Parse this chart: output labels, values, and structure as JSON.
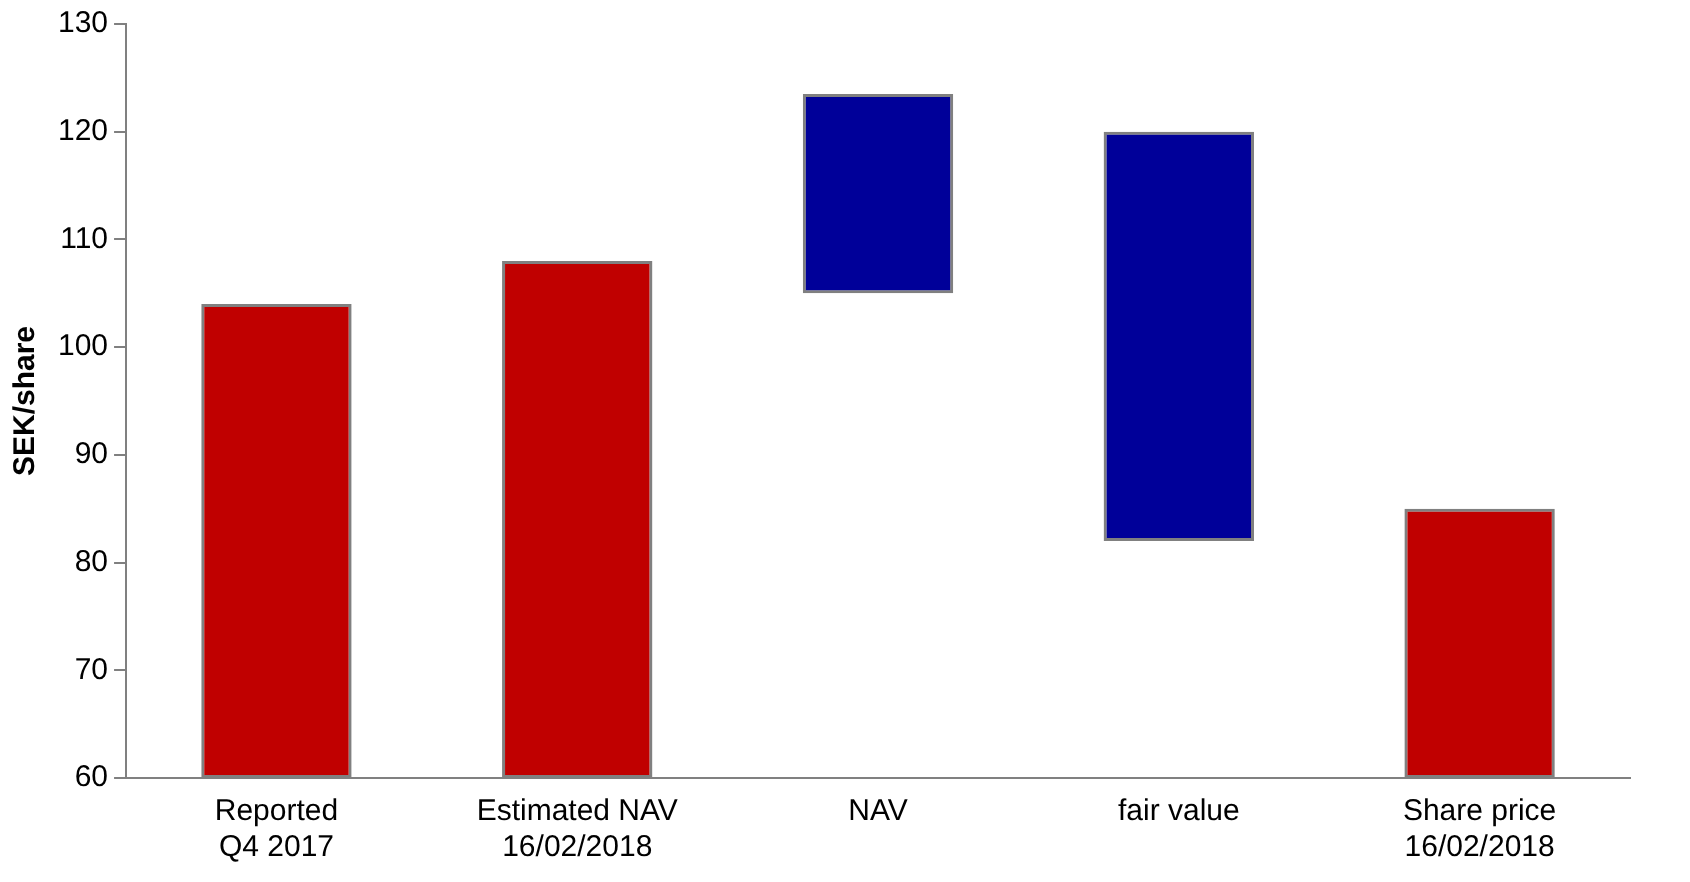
{
  "chart_data": {
    "type": "bar",
    "ylabel": "SEK/share",
    "categories": [
      "Reported Q4 2017",
      "Estimated NAV 16/02/2018",
      "NAV",
      "fair value",
      "Share price 16/02/2018"
    ],
    "values": [
      44,
      48,
      18.5,
      38,
      25
    ],
    "base": [
      60,
      60,
      105,
      82,
      60
    ],
    "colors": [
      "#c00000",
      "#c00000",
      "#000099",
      "#000099",
      "#c00000"
    ],
    "ylim": [
      60,
      130
    ],
    "yticks": [
      60,
      70,
      80,
      90,
      100,
      110,
      120,
      130
    ],
    "grid": false,
    "legend": false
  }
}
